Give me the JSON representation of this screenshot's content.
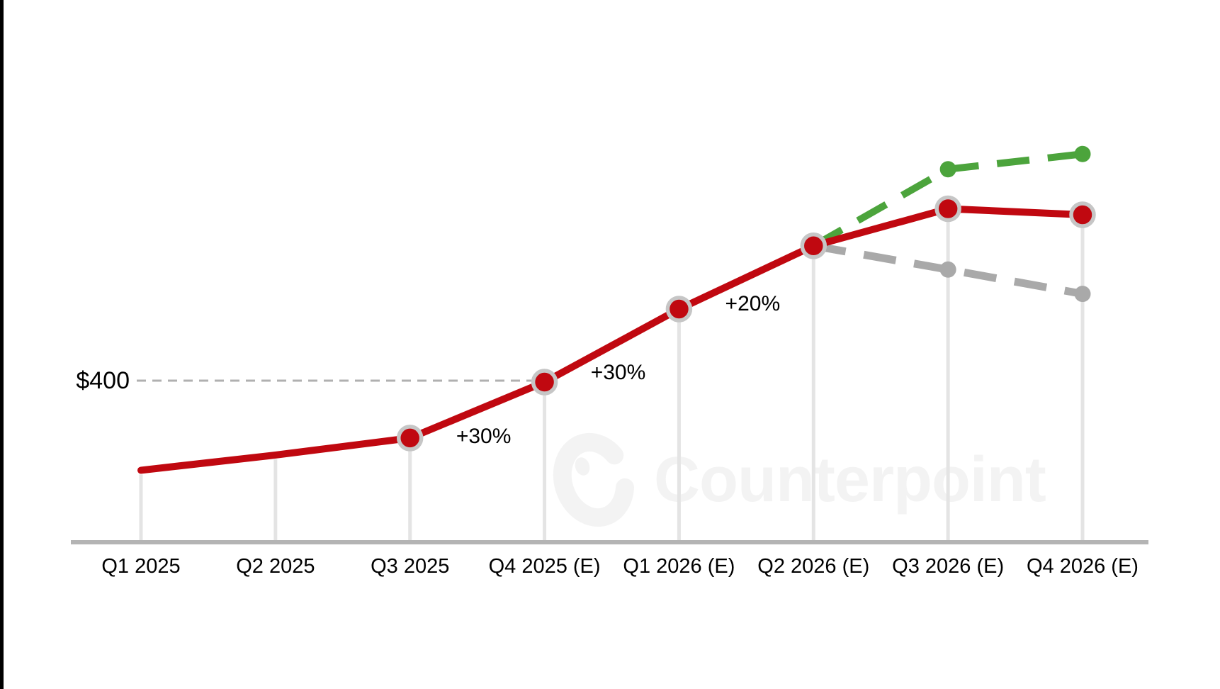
{
  "watermark": {
    "text": "Counterpoint",
    "logo_icon": "counterpoint-c-logo",
    "color": "#f3f3f3"
  },
  "chart_data": {
    "type": "line",
    "title": "",
    "categories": [
      "Q1 2025",
      "Q2 2025",
      "Q3 2025",
      "Q4 2025 (E)",
      "Q1 2026 (E)",
      "Q2 2026 (E)",
      "Q3 2026 (E)",
      "Q4 2026 (E)"
    ],
    "series": [
      {
        "name": "red-solid-line",
        "color": "#c00810",
        "line_style": "solid",
        "line_width": 10,
        "marker": "ring-dot",
        "marker_ring_color": "#c6c6c6",
        "first_marker_index": 2,
        "start_index": 0,
        "values_estimated_usd": [
          255,
          280,
          308,
          400,
          520,
          624,
          685,
          675
        ]
      },
      {
        "name": "green-dashed-line",
        "color": "#4ca43c",
        "line_style": "dashed",
        "line_width": 10,
        "marker": "dot",
        "first_marker_index": 1,
        "start_index": 5,
        "values_estimated_usd": [
          624,
          750,
          775
        ]
      },
      {
        "name": "gray-dashed-line",
        "color": "#a9a9a9",
        "line_style": "dashed",
        "line_width": 11,
        "marker": "dot",
        "first_marker_index": 1,
        "start_index": 5,
        "values_estimated_usd": [
          624,
          585,
          545
        ]
      }
    ],
    "y_reference": {
      "label": "$400",
      "value": 400,
      "line_color": "#b0b0b0",
      "line_style": "dashed"
    },
    "annotations": [
      {
        "text": "+30%",
        "between_categories": [
          2,
          3
        ]
      },
      {
        "text": "+30%",
        "between_categories": [
          3,
          4
        ]
      },
      {
        "text": "+20%",
        "between_categories": [
          4,
          5
        ]
      }
    ],
    "axis": {
      "baseline_color": "#b4b4b4",
      "dropline_color": "#e4e4e4",
      "label_color": "#000000",
      "gridlines": "droplines-only",
      "legend": "none"
    },
    "ylim_estimated": [
      200,
      800
    ]
  }
}
